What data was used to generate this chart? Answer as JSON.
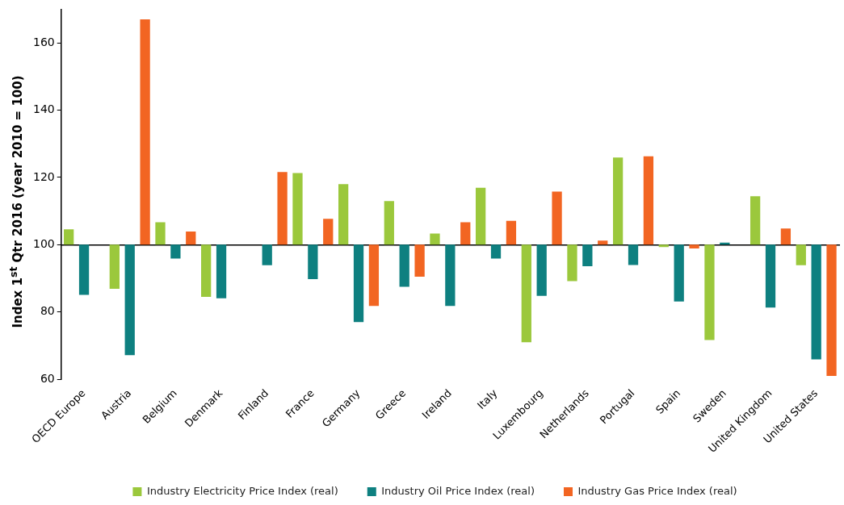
{
  "chart_data": {
    "type": "bar",
    "ylabel": "Index 1$^{st}$ Qtr 2016 (year 2010 = 100)",
    "categories": [
      "OECD Europe",
      "Austria",
      "Belgium",
      "Denmark",
      "Finland",
      "France",
      "Germany",
      "Greece",
      "Ireland",
      "Italy",
      "Luxembourg",
      "Netherlands",
      "Portugal",
      "Spain",
      "Sweden",
      "United Kingdom",
      "United States"
    ],
    "series": [
      {
        "name": "Industry Electricity Price Index (real)",
        "color": "#9bc83c",
        "values": [
          4.6,
          -13.1,
          6.7,
          -15.5,
          null,
          21.3,
          18.0,
          13.0,
          3.3,
          16.9,
          -29.0,
          -10.8,
          25.9,
          -0.7,
          -28.3,
          14.4,
          -6.1
        ],
        "base": [
          100,
          100,
          100,
          100,
          null,
          100,
          100,
          100,
          100,
          100,
          100,
          100,
          100,
          100,
          100,
          100,
          100
        ]
      },
      {
        "name": "Industry Oil Price Index (real)",
        "color": "#0e8080",
        "values": [
          -14.9,
          -32.8,
          -4.1,
          -15.9,
          -6.1,
          -10.2,
          -23.0,
          -12.5,
          -18.2,
          -4.1,
          -15.2,
          -6.4,
          -6.0,
          -16.9,
          0.6,
          -18.7,
          -34.1
        ],
        "base": [
          100,
          100,
          100,
          100,
          100,
          100,
          100,
          100,
          100,
          100,
          100,
          100,
          100,
          100,
          100,
          100,
          100
        ]
      },
      {
        "name": "Industry Gas Price Index (real)",
        "color": "#f26522",
        "values": [
          null,
          67.0,
          3.9,
          null,
          21.6,
          7.7,
          -18.2,
          -9.5,
          6.7,
          7.1,
          15.8,
          1.2,
          26.3,
          -1.1,
          null,
          4.8,
          -39.0
        ],
        "base": [
          null,
          100,
          100,
          null,
          100,
          100,
          100,
          100,
          100,
          100,
          100,
          100,
          100,
          100,
          null,
          100,
          100
        ]
      }
    ],
    "ylim": [
      60,
      170
    ],
    "yticks": [
      60,
      80,
      100,
      120,
      140,
      160
    ],
    "legend": "bottom"
  }
}
